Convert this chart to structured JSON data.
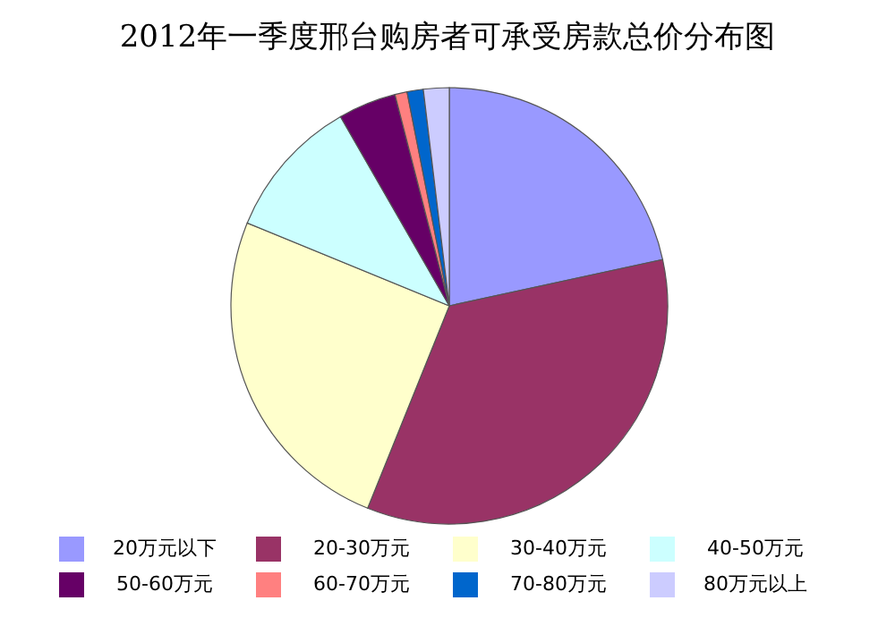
{
  "chart_data": {
    "type": "pie",
    "title": "2012年一季度邢台购房者可承受房款总价分布图",
    "categories": [
      "20万元以下",
      "20-30万元",
      "30-40万元",
      "40-50万元",
      "50-60万元",
      "60-70万元",
      "70-80万元",
      "80万元以上"
    ],
    "values": [
      21.6,
      34.5,
      25.1,
      10.5,
      4.3,
      0.9,
      1.2,
      1.9
    ],
    "colors": [
      "#9999ff",
      "#993366",
      "#ffffcc",
      "#ccffff",
      "#660066",
      "#ff8080",
      "#0066cc",
      "#ccccff"
    ],
    "legend": "bottom"
  }
}
